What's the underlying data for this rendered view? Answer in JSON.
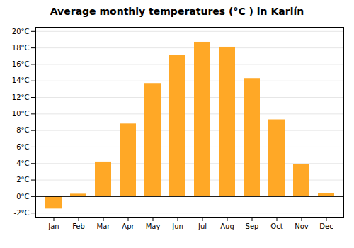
{
  "chart_data": {
    "type": "bar",
    "title": "Average monthly temperatures (°C ) in Karlín",
    "categories": [
      "Jan",
      "Feb",
      "Mar",
      "Apr",
      "May",
      "Jun",
      "Jul",
      "Aug",
      "Sep",
      "Oct",
      "Nov",
      "Dec"
    ],
    "values": [
      -1.5,
      0.3,
      4.2,
      8.8,
      13.7,
      17.1,
      18.7,
      18.1,
      14.3,
      9.3,
      3.9,
      0.4
    ],
    "color": "#FFA826",
    "ylim": [
      -2.5,
      20.5
    ],
    "yticks": [
      {
        "value": -2,
        "label": "-2°C"
      },
      {
        "value": 0,
        "label": "0°C"
      },
      {
        "value": 2,
        "label": "2°C"
      },
      {
        "value": 4,
        "label": "4°C"
      },
      {
        "value": 6,
        "label": "6°C"
      },
      {
        "value": 8,
        "label": "8°C"
      },
      {
        "value": 10,
        "label": "10°C"
      },
      {
        "value": 12,
        "label": "12°C"
      },
      {
        "value": 14,
        "label": "14°C"
      },
      {
        "value": 16,
        "label": "16°C"
      },
      {
        "value": 18,
        "label": "18°C"
      },
      {
        "value": 20,
        "label": "20°C"
      }
    ],
    "grid": true
  }
}
